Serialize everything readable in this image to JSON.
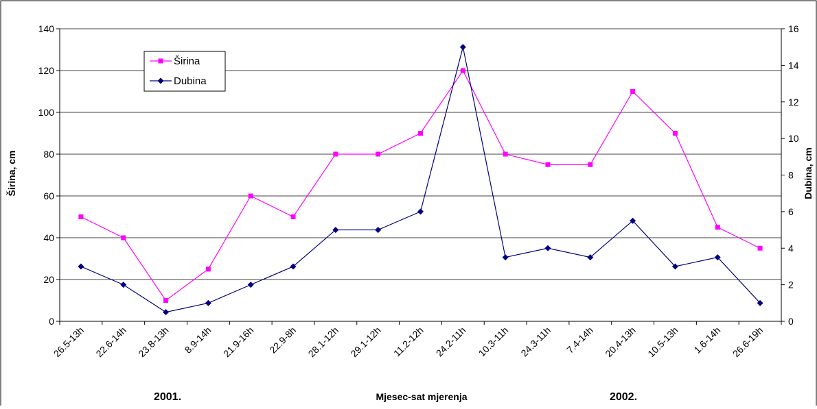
{
  "chart_data": {
    "type": "line",
    "xlabel": "Mjesec-sat mjerenja",
    "ylabel": "Širina, cm",
    "y2label": "Dubina, cm",
    "ylim": [
      0,
      140
    ],
    "y2lim": [
      0,
      16
    ],
    "yticks": [
      "0",
      "20",
      "40",
      "60",
      "80",
      "100",
      "120",
      "140"
    ],
    "y2ticks": [
      "0",
      "2",
      "4",
      "6",
      "8",
      "10",
      "12",
      "14",
      "16"
    ],
    "grid": "horizontal",
    "legend_position": "top-left",
    "categories": [
      "26.5-13h",
      "22.6-14h",
      "23.8-13h",
      "8.9-14h",
      "21.9-16h",
      "22.9-8h",
      "28.1-12h",
      "29.1-12h",
      "11.2-12h",
      "24.2-11h",
      "10.3-11h",
      "24.3-11h",
      "7.4-14h",
      "20.4-13h",
      "10.5-13h",
      "1.6-14h",
      "26.6-19h"
    ],
    "year_labels": [
      "2001.",
      "2002."
    ],
    "series": [
      {
        "name": "Širina",
        "axis": "left",
        "color": "#FF00FF",
        "marker": "square",
        "values": [
          50,
          40,
          10,
          25,
          60,
          50,
          80,
          80,
          90,
          120,
          80,
          75,
          75,
          110,
          90,
          45,
          35
        ]
      },
      {
        "name": "Dubina",
        "axis": "right",
        "color": "#000080",
        "marker": "diamond",
        "values": [
          3,
          2,
          0.5,
          1,
          2,
          3,
          5,
          5,
          6,
          15,
          3.5,
          4,
          3.5,
          5.5,
          3,
          3.5,
          1
        ]
      }
    ]
  }
}
